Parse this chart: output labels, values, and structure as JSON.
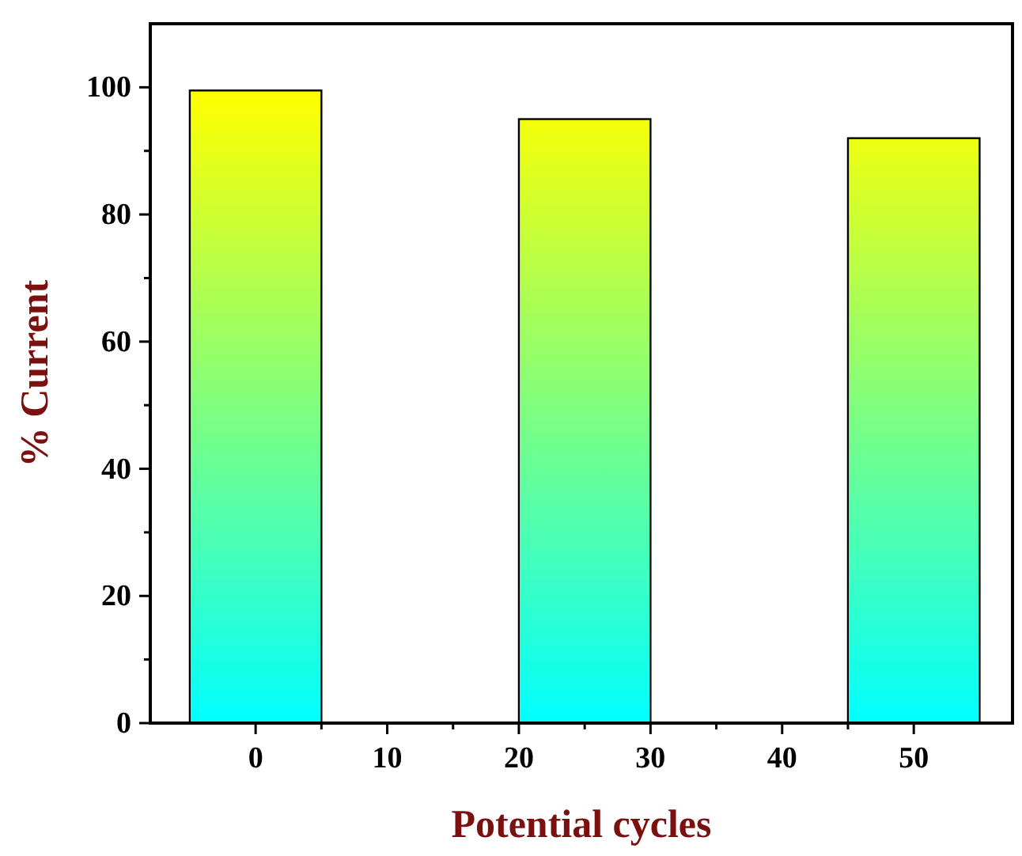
{
  "chart_data": {
    "type": "bar",
    "xlabel": "Potential cycles",
    "ylabel": "% Current",
    "x": [
      0,
      25,
      50
    ],
    "values": [
      99.5,
      95,
      92
    ],
    "color": "#ffff00",
    "xlim": [
      -8,
      57.5
    ],
    "xticks": [
      0,
      10,
      20,
      30,
      40,
      50
    ],
    "ylim": [
      0,
      110
    ],
    "yticks": [
      0,
      20,
      40,
      60,
      80,
      100
    ]
  }
}
